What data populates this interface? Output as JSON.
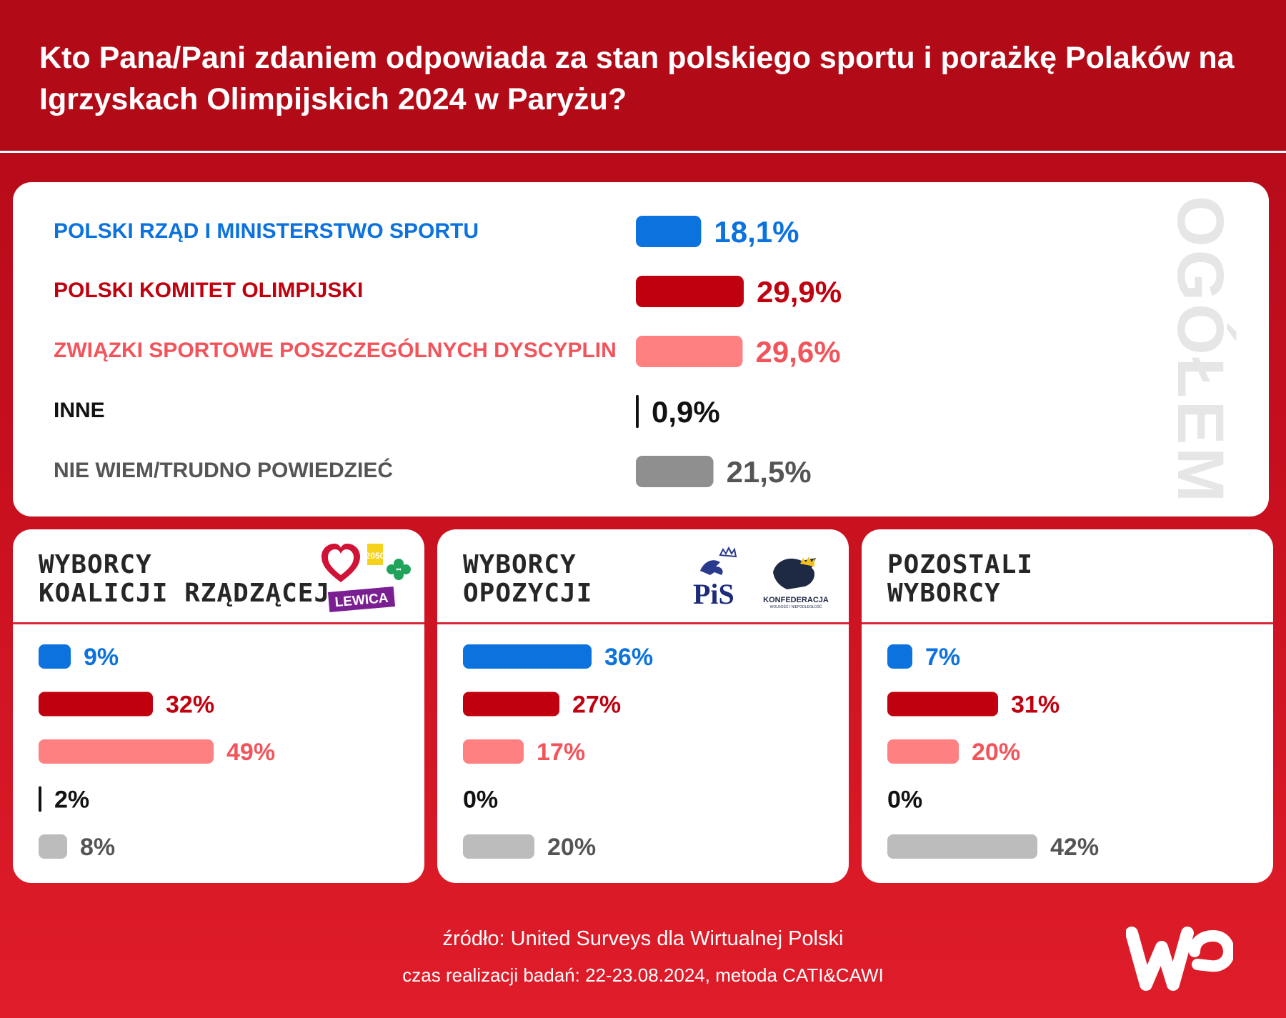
{
  "title": "Kto Pana/Pani zdaniem odpowiada za stan polskiego sportu i porażkę Polaków na Igrzyskach Olimpijskich 2024 w Paryżu?",
  "overall_side_label": "OGÓŁEM",
  "colors": {
    "blue": "#0b72de",
    "dark_red": "#c0000e",
    "pink": "#ff8080",
    "pink_text": "#f2545b",
    "black": "#111111",
    "gray": "#8f8f8f",
    "light_gray": "#bcbcbc",
    "label_gray": "#555555"
  },
  "chart_data": [
    {
      "type": "bar",
      "name": "OGÓŁEM",
      "categories": [
        "POLSKI RZĄD I MINISTERSTWO SPORTU",
        "POLSKI KOMITET OLIMPIJSKI",
        "ZWIĄZKI SPORTOWE POSZCZEGÓLNYCH DYSCYPLIN",
        "INNE",
        "NIE WIEM/TRUDNO POWIEDZIEĆ"
      ],
      "values": [
        18.1,
        29.9,
        29.6,
        0.9,
        21.5
      ],
      "value_labels": [
        "18,1%",
        "29,9%",
        "29,6%",
        "0,9%",
        "21,5%"
      ],
      "bar_colors": [
        "#0b72de",
        "#c0000e",
        "#ff8080",
        "#111111",
        "#8f8f8f"
      ],
      "label_colors": [
        "#0b72de",
        "#c0000e",
        "#f2545b",
        "#111111",
        "#555555"
      ],
      "value_colors": [
        "#0b72de",
        "#c0000e",
        "#f2545b",
        "#111111",
        "#555555"
      ]
    },
    {
      "type": "bar",
      "title_lines": [
        "WYBORCY",
        "KOALICJI RZĄDZĄCEJ"
      ],
      "values": [
        9,
        32,
        49,
        2,
        8
      ],
      "value_labels": [
        "9%",
        "32%",
        "49%",
        "2%",
        "8%"
      ],
      "bar_colors": [
        "#0b72de",
        "#c0000e",
        "#ff8080",
        "#111111",
        "#bcbcbc"
      ],
      "value_colors": [
        "#0b72de",
        "#c0000e",
        "#f2545b",
        "#111111",
        "#555555"
      ]
    },
    {
      "type": "bar",
      "title_lines": [
        "WYBORCY",
        "OPOZYCJI"
      ],
      "values": [
        36,
        27,
        17,
        0,
        20
      ],
      "value_labels": [
        "36%",
        "27%",
        "17%",
        "0%",
        "20%"
      ],
      "bar_colors": [
        "#0b72de",
        "#c0000e",
        "#ff8080",
        "#111111",
        "#bcbcbc"
      ],
      "value_colors": [
        "#0b72de",
        "#c0000e",
        "#f2545b",
        "#111111",
        "#555555"
      ]
    },
    {
      "type": "bar",
      "title_lines": [
        "POZOSTALI",
        "WYBORCY"
      ],
      "values": [
        7,
        31,
        20,
        0,
        42
      ],
      "value_labels": [
        "7%",
        "31%",
        "20%",
        "0%",
        "42%"
      ],
      "bar_colors": [
        "#0b72de",
        "#c0000e",
        "#ff8080",
        "#111111",
        "#bcbcbc"
      ],
      "value_colors": [
        "#0b72de",
        "#c0000e",
        "#f2545b",
        "#111111",
        "#555555"
      ]
    }
  ],
  "logos": {
    "koalicja": {
      "badge": "LEWICA",
      "mark": "2050"
    },
    "opozycja": {
      "pis": "PiS",
      "konfederacja": "KONFEDERACJA",
      "konf_sub": "WOLNOŚĆ I NIEPODLEGŁOŚĆ"
    }
  },
  "footer": {
    "source": "źródło: United Surveys dla Wirtualnej Polski",
    "method": "czas realizacji badań: 22-23.08.2024, metoda CATI&CAWI"
  },
  "brand": "WP"
}
